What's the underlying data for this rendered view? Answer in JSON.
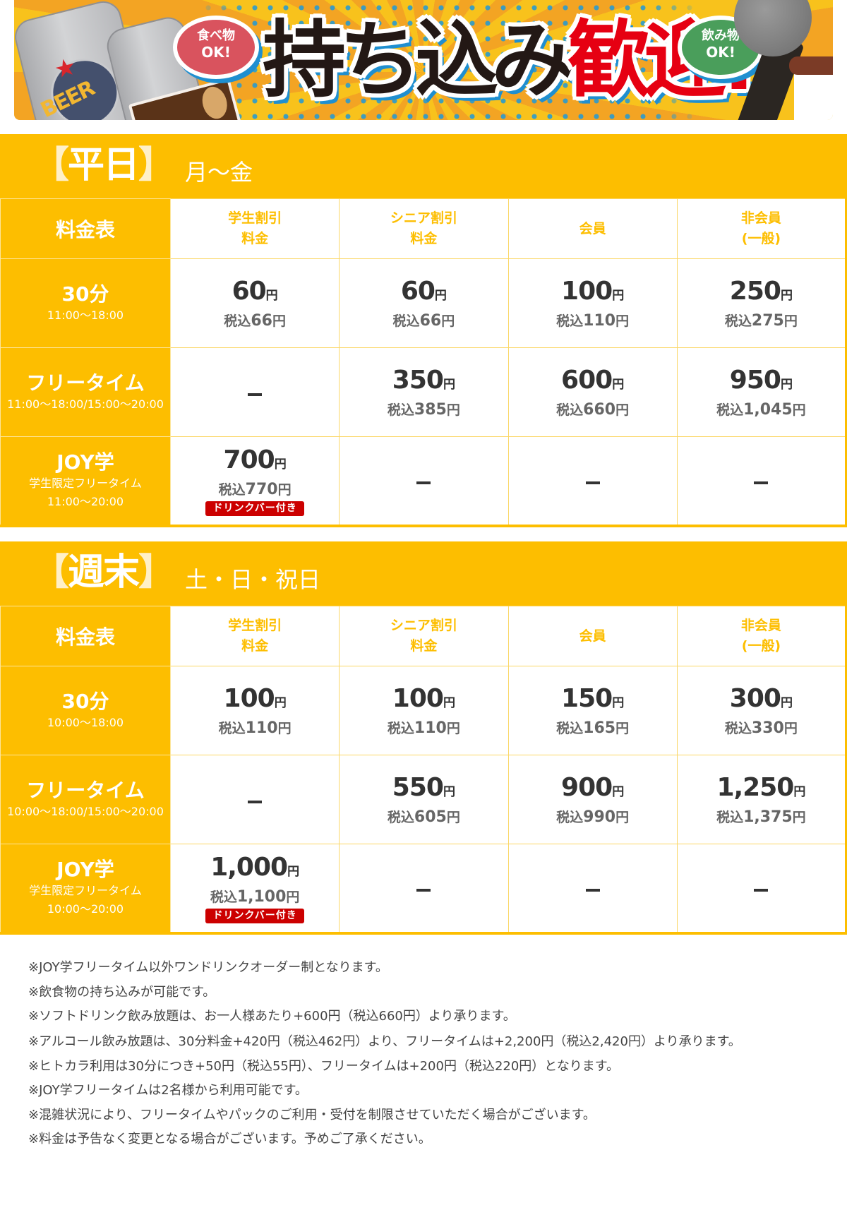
{
  "banner": {
    "title_part1": "持ち込み",
    "title_part2": "歓迎!",
    "food_bubble": {
      "line1": "食べ物",
      "line2": "OK!"
    },
    "drink_bubble": {
      "line1": "飲み物",
      "line2": "OK!"
    },
    "can_text": "BEER",
    "colors": {
      "title_dark": "#231815",
      "title_red": "#e60012",
      "outline_blue": "#1f8fd0",
      "food_bubble": "#d9535e",
      "drink_bubble": "#4a9e5b"
    }
  },
  "colors": {
    "accent": "#fdbe00",
    "badge": "#cc0000",
    "price_text": "#333333",
    "tax_text": "#666666"
  },
  "weekday": {
    "bracket_open": "【",
    "title": "平日",
    "bracket_close": "】",
    "subtitle": "月〜金",
    "corner": "料金表",
    "columns": [
      {
        "line1": "学生割引",
        "line2": "料金"
      },
      {
        "line1": "シニア割引",
        "line2": "料金"
      },
      {
        "line1": "会員",
        "line2": ""
      },
      {
        "line1": "非会員",
        "line2": "(一般)"
      }
    ],
    "rows": [
      {
        "name": "30分",
        "sub1": "11:00〜18:00",
        "sub2": "",
        "cells": [
          {
            "price": "60",
            "unit": "円",
            "tax_label": "税込",
            "tax": "66",
            "tax_unit": "円"
          },
          {
            "price": "60",
            "unit": "円",
            "tax_label": "税込",
            "tax": "66",
            "tax_unit": "円"
          },
          {
            "price": "100",
            "unit": "円",
            "tax_label": "税込",
            "tax": "110",
            "tax_unit": "円"
          },
          {
            "price": "250",
            "unit": "円",
            "tax_label": "税込",
            "tax": "275",
            "tax_unit": "円"
          }
        ]
      },
      {
        "name": "フリータイム",
        "sub1": "11:00〜18:00/15:00〜20:00",
        "sub2": "",
        "cells": [
          null,
          {
            "price": "350",
            "unit": "円",
            "tax_label": "税込",
            "tax": "385",
            "tax_unit": "円"
          },
          {
            "price": "600",
            "unit": "円",
            "tax_label": "税込",
            "tax": "660",
            "tax_unit": "円"
          },
          {
            "price": "950",
            "unit": "円",
            "tax_label": "税込",
            "tax": "1,045",
            "tax_unit": "円"
          }
        ]
      },
      {
        "name": "JOY学",
        "sub1": "学生限定フリータイム",
        "sub2": "11:00〜20:00",
        "cells": [
          {
            "price": "700",
            "unit": "円",
            "tax_label": "税込",
            "tax": "770",
            "tax_unit": "円",
            "badge": "ドリンクバー付き"
          },
          null,
          null,
          null
        ]
      }
    ]
  },
  "weekend": {
    "bracket_open": "【",
    "title": "週末",
    "bracket_close": "】",
    "subtitle": "土・日・祝日",
    "corner": "料金表",
    "columns": [
      {
        "line1": "学生割引",
        "line2": "料金"
      },
      {
        "line1": "シニア割引",
        "line2": "料金"
      },
      {
        "line1": "会員",
        "line2": ""
      },
      {
        "line1": "非会員",
        "line2": "(一般)"
      }
    ],
    "rows": [
      {
        "name": "30分",
        "sub1": "10:00〜18:00",
        "sub2": "",
        "cells": [
          {
            "price": "100",
            "unit": "円",
            "tax_label": "税込",
            "tax": "110",
            "tax_unit": "円"
          },
          {
            "price": "100",
            "unit": "円",
            "tax_label": "税込",
            "tax": "110",
            "tax_unit": "円"
          },
          {
            "price": "150",
            "unit": "円",
            "tax_label": "税込",
            "tax": "165",
            "tax_unit": "円"
          },
          {
            "price": "300",
            "unit": "円",
            "tax_label": "税込",
            "tax": "330",
            "tax_unit": "円"
          }
        ]
      },
      {
        "name": "フリータイム",
        "sub1": "10:00〜18:00/15:00〜20:00",
        "sub2": "",
        "cells": [
          null,
          {
            "price": "550",
            "unit": "円",
            "tax_label": "税込",
            "tax": "605",
            "tax_unit": "円"
          },
          {
            "price": "900",
            "unit": "円",
            "tax_label": "税込",
            "tax": "990",
            "tax_unit": "円"
          },
          {
            "price": "1,250",
            "unit": "円",
            "tax_label": "税込",
            "tax": "1,375",
            "tax_unit": "円"
          }
        ]
      },
      {
        "name": "JOY学",
        "sub1": "学生限定フリータイム",
        "sub2": "10:00〜20:00",
        "cells": [
          {
            "price": "1,000",
            "unit": "円",
            "tax_label": "税込",
            "tax": "1,100",
            "tax_unit": "円",
            "badge": "ドリンクバー付き"
          },
          null,
          null,
          null
        ]
      }
    ]
  },
  "notes": [
    "※JOY学フリータイム以外ワンドリンクオーダー制となります。",
    "※飲食物の持ち込みが可能です。",
    "※ソフトドリンク飲み放題は、お一人様あたり+600円（税込660円）より承ります。",
    "※アルコール飲み放題は、30分料金+420円（税込462円）より、フリータイムは+2,200円（税込2,420円）より承ります。",
    "※ヒトカラ利用は30分につき+50円（税込55円）、フリータイムは+200円（税込220円）となります。",
    "※JOY学フリータイムは2名様から利用可能です。",
    "※混雑状況により、フリータイムやパックのご利用・受付を制限させていただく場合がございます。",
    "※料金は予告なく変更となる場合がございます。予めご了承ください。"
  ]
}
